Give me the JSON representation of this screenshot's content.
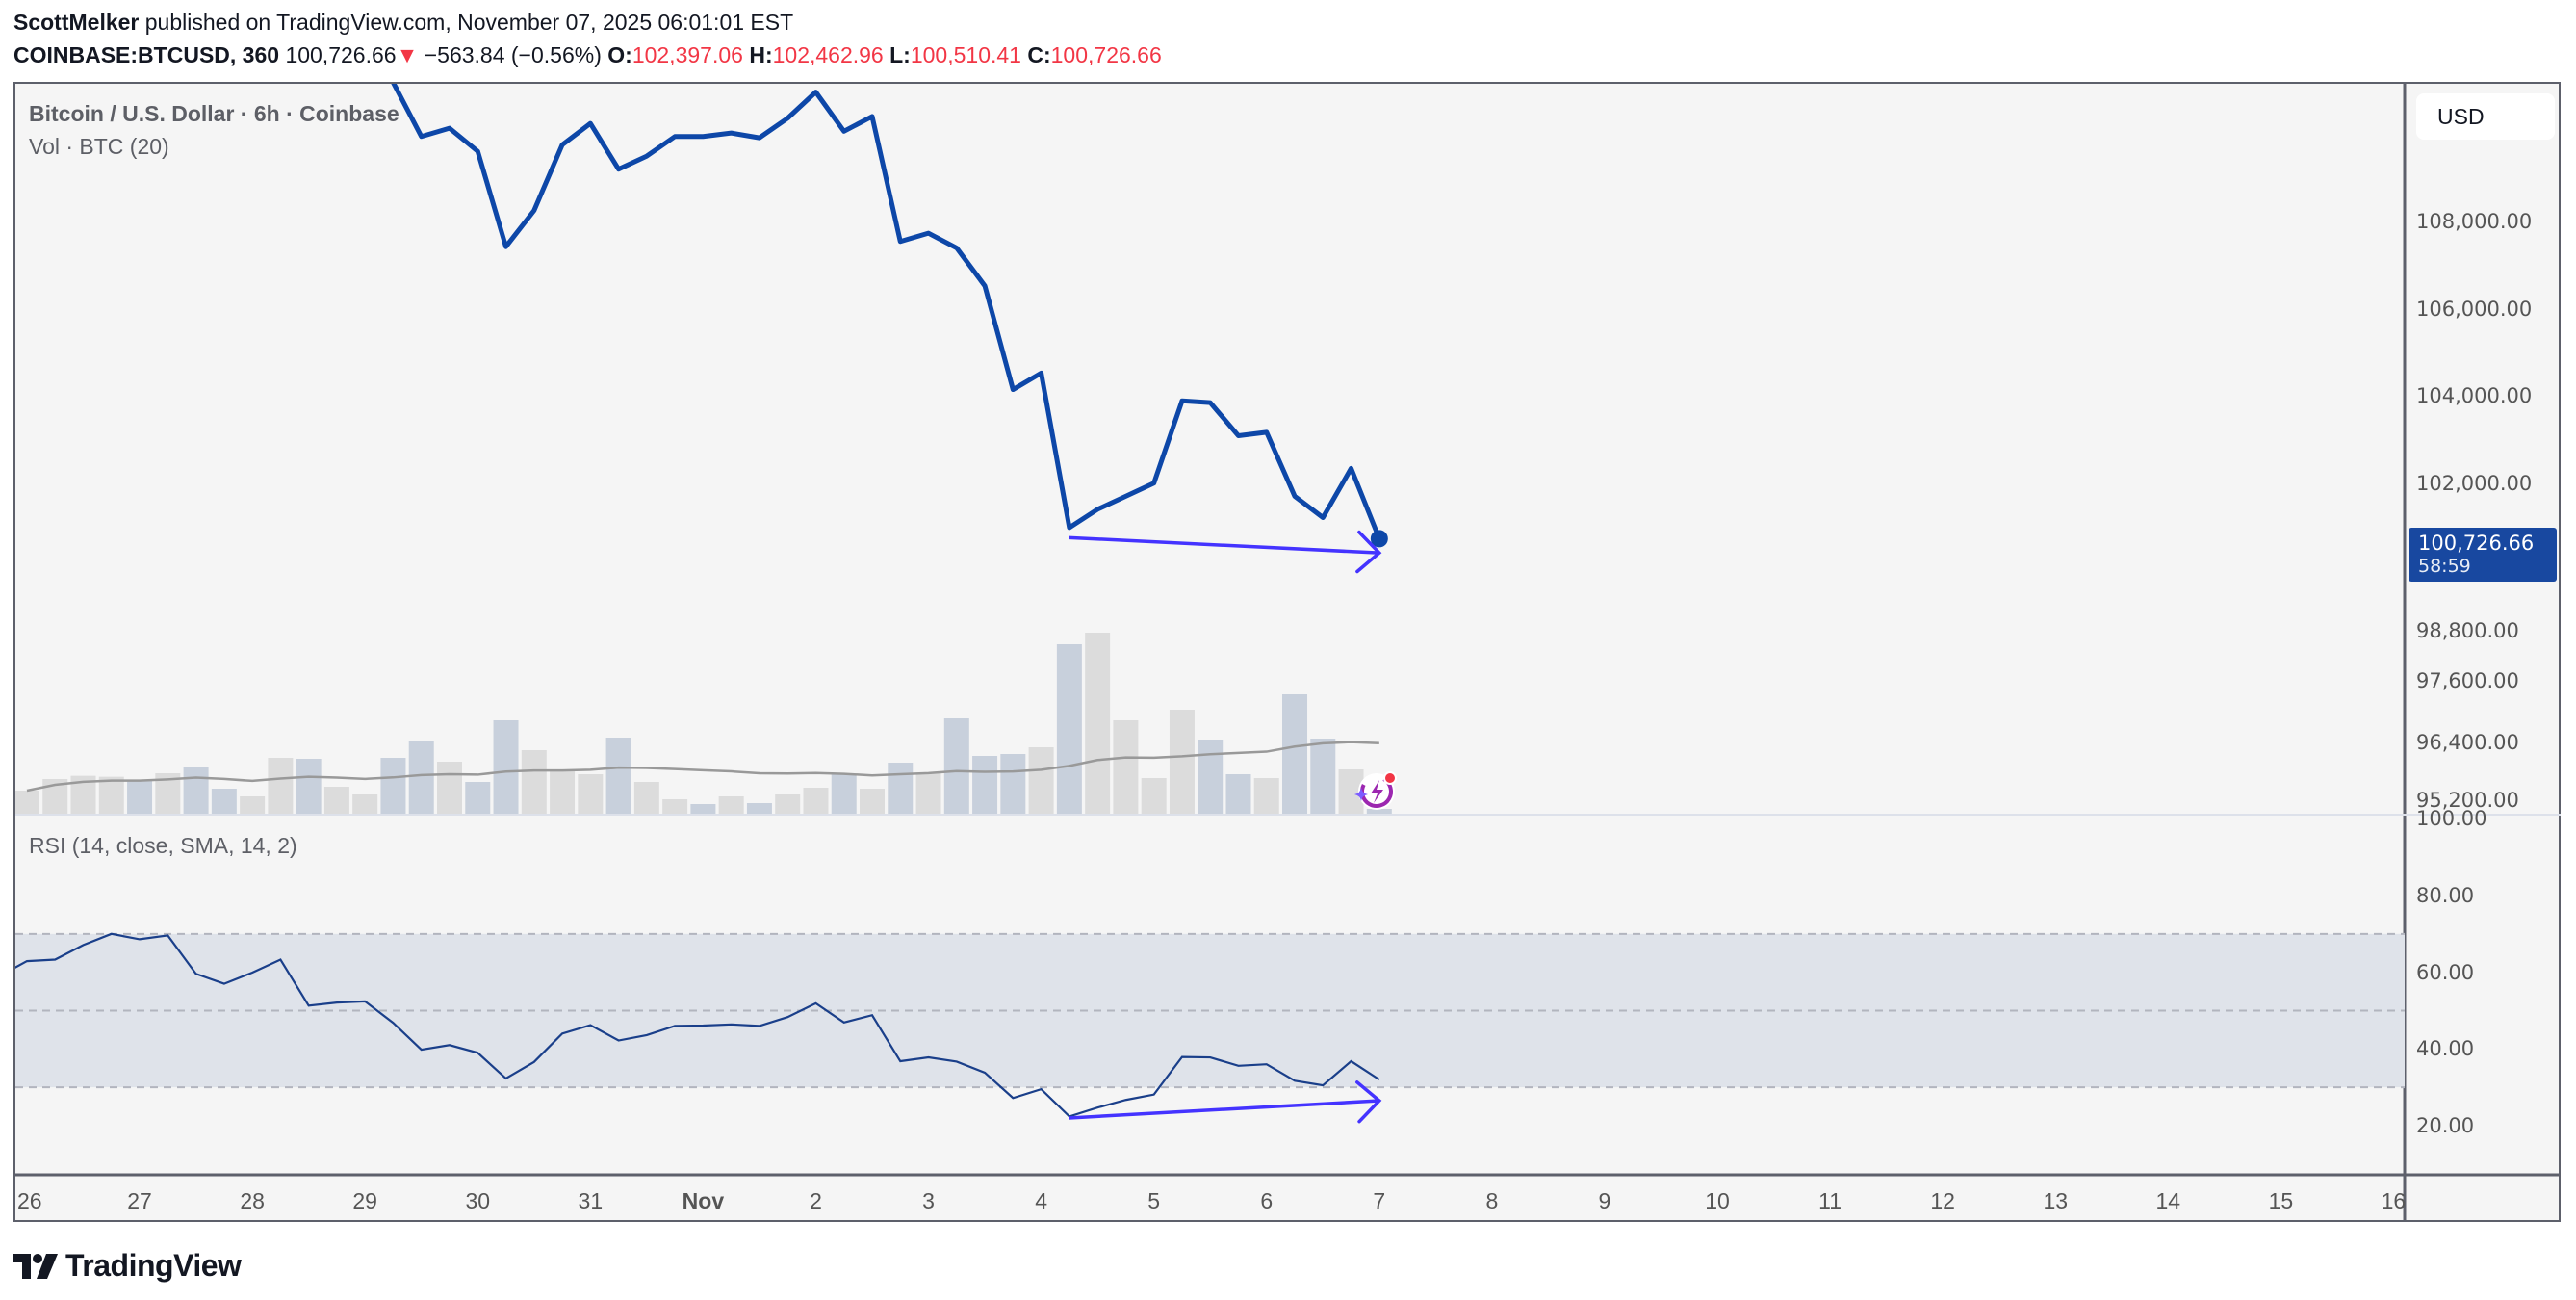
{
  "header": {
    "author": "ScottMelker",
    "published": "published on TradingView.com, November 07, 2025 06:01:01 EST",
    "symbol": "COINBASE:BTCUSD, 360",
    "last": "100,726.66",
    "change_arrow": "▼",
    "change": "−563.84 (−0.56%)",
    "o_label": "O:",
    "o_value": "102,397.06",
    "h_label": "H:",
    "h_value": "102,462.96",
    "l_label": "L:",
    "l_value": "100,510.41",
    "c_label": "C:",
    "c_value": "100,726.66"
  },
  "legend": {
    "title": "Bitcoin / U.S. Dollar · 6h · Coinbase",
    "volume": "Vol · BTC (20)",
    "rsi": "RSI (14, close, SMA, 14, 2)"
  },
  "price_axis": {
    "currency": "USD",
    "ticks": [
      "108,000.00",
      "106,000.00",
      "104,000.00",
      "102,000.00"
    ],
    "lower_ticks": [
      "98,800.00",
      "97,600.00",
      "96,400.00",
      "95,200.00"
    ],
    "last_price": "100,726.66",
    "countdown": "58:59"
  },
  "rsi_axis": {
    "ticks": [
      "100.00",
      "80.00",
      "60.00",
      "40.00",
      "20.00"
    ]
  },
  "time_axis": {
    "labels": [
      "26",
      "27",
      "28",
      "29",
      "30",
      "31",
      "Nov",
      "2",
      "3",
      "4",
      "5",
      "6",
      "7",
      "8",
      "9",
      "10",
      "11",
      "12",
      "13",
      "14",
      "15",
      "16"
    ]
  },
  "colors": {
    "price_line": "#0d47a8",
    "volume_up": "#dcdcdc",
    "volume_down": "#c8d0dc",
    "volume_ma": "#999999",
    "rsi_line": "#1a3f8a",
    "rsi_band": "#dfe3ea",
    "drawing_arrow": "#4433ff",
    "last_price_badge": "#1848a0",
    "header_values": "#f23645"
  },
  "chart_data": [
    {
      "type": "line",
      "series_label": "Bitcoin / U.S. Dollar · 6h · Coinbase",
      "interval": "6h",
      "start": "2025-10-29T06:00:00Z",
      "close": [
        111200,
        109960,
        110150,
        109620,
        107430,
        108260,
        109770,
        110260,
        109210,
        109510,
        109960,
        109960,
        110040,
        109930,
        110380,
        110980,
        110080,
        110420,
        107550,
        107740,
        107400,
        106530,
        104150,
        104530,
        100980,
        101400,
        101700,
        102000,
        103890,
        103850,
        103090,
        103170,
        101700,
        101210,
        102340,
        100726.66
      ],
      "ylim_visible": [
        100000,
        110900
      ]
    },
    {
      "type": "bar",
      "series_label": "Vol · BTC (20)",
      "start": "2025-10-26T00:00:00Z",
      "interval": "6h",
      "values": [
        72,
        108,
        118,
        115,
        102,
        126,
        147,
        78,
        54,
        174,
        171,
        84,
        60,
        174,
        225,
        162,
        99,
        291,
        198,
        132,
        123,
        237,
        99,
        45,
        30,
        54,
        33,
        60,
        81,
        123,
        78,
        159,
        126,
        297,
        180,
        186,
        207,
        528,
        564,
        291,
        111,
        324,
        231,
        123,
        111,
        372,
        234,
        138,
        15
      ],
      "direction": [
        "up",
        "up",
        "up",
        "up",
        "down",
        "up",
        "down",
        "down",
        "up",
        "up",
        "down",
        "up",
        "up",
        "down",
        "down",
        "up",
        "down",
        "down",
        "up",
        "up",
        "up",
        "down",
        "up",
        "up",
        "down",
        "up",
        "down",
        "up",
        "up",
        "down",
        "up",
        "down",
        "up",
        "down",
        "down",
        "down",
        "up",
        "down",
        "up",
        "up",
        "up",
        "up",
        "down",
        "down",
        "up",
        "down",
        "down",
        "up",
        "down"
      ],
      "ma_period": 20
    },
    {
      "type": "line",
      "series_label": "RSI (14, close, SMA, 14, 2)",
      "start": "2025-10-25T18:00:00Z",
      "interval": "6h",
      "values": [
        58.9,
        62.9,
        63.3,
        67.1,
        70.0,
        68.6,
        69.6,
        59.6,
        57.0,
        59.9,
        63.3,
        51.3,
        52.1,
        52.4,
        46.8,
        39.8,
        41.0,
        39.0,
        32.3,
        36.6,
        44.0,
        46.2,
        42.2,
        43.6,
        46.0,
        46.1,
        46.4,
        46.0,
        48.3,
        51.9,
        46.9,
        48.8,
        36.8,
        37.8,
        36.7,
        33.8,
        27.2,
        29.5,
        22.4,
        24.7,
        26.7,
        28.1,
        37.9,
        37.8,
        35.6,
        36.0,
        31.7,
        30.5,
        36.8,
        32.0
      ],
      "bands": {
        "upper": 70,
        "middle": 50,
        "lower": 30
      },
      "ylim": [
        10,
        100
      ]
    }
  ],
  "drawings": [
    {
      "pane": "price",
      "from": {
        "time": "2025-11-04T06:00:00Z",
        "value": 100750
      },
      "to": {
        "time": "2025-11-07T00:00:00Z",
        "value": 100400
      }
    },
    {
      "pane": "rsi",
      "from": {
        "time": "2025-11-04T06:00:00Z",
        "value": 22
      },
      "to": {
        "time": "2025-11-07T00:00:00Z",
        "value": 26.5
      }
    }
  ],
  "logo": "TradingView"
}
